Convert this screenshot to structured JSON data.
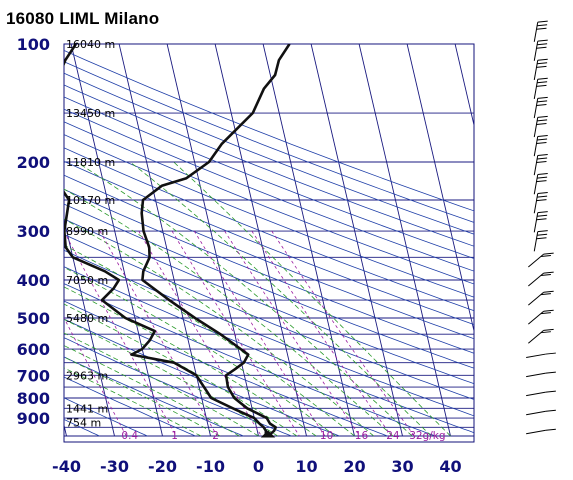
{
  "title": "16080 LIML Milano",
  "chart_data": {
    "type": "line",
    "title": "16080 LIML Milano",
    "x_axis": {
      "ticks": [
        -40,
        -30,
        -20,
        -10,
        0,
        10,
        20,
        30,
        40
      ],
      "range": [
        -40,
        45
      ]
    },
    "y_axis": {
      "ticks": [
        100,
        200,
        300,
        400,
        500,
        600,
        700,
        800,
        900
      ],
      "range": [
        100,
        1000
      ],
      "scale": "log"
    },
    "height_labels": [
      {
        "p": 100,
        "label": "16040 m"
      },
      {
        "p": 150,
        "label": "13450 m"
      },
      {
        "p": 200,
        "label": "11810 m"
      },
      {
        "p": 250,
        "label": "10170 m"
      },
      {
        "p": 300,
        "label": "8990 m"
      },
      {
        "p": 400,
        "label": "7050 m"
      },
      {
        "p": 500,
        "label": "5480 m"
      },
      {
        "p": 700,
        "label": "2963 m"
      },
      {
        "p": 850,
        "label": "1441 m"
      },
      {
        "p": 925,
        "label": "754 m"
      }
    ],
    "mixing_ratio_labels": [
      {
        "w": 0.4,
        "label": "0.4"
      },
      {
        "w": 1,
        "label": "1"
      },
      {
        "w": 2,
        "label": "2"
      },
      {
        "w": 10,
        "label": "10"
      },
      {
        "w": 16,
        "label": "16"
      },
      {
        "w": 24,
        "label": "24"
      },
      {
        "w": 32,
        "label": "32g/kg"
      }
    ],
    "series": [
      {
        "line": "temperature",
        "color": "#111111",
        "points": [
          [
            1000,
            2.0
          ],
          [
            970,
            3.5
          ],
          [
            950,
            4.0
          ],
          [
            930,
            3.0
          ],
          [
            900,
            2.6
          ],
          [
            850,
            -1.0
          ],
          [
            800,
            -3.2
          ],
          [
            750,
            -4.0
          ],
          [
            700,
            -3.8
          ],
          [
            675,
            -1.6
          ],
          [
            650,
            0.5
          ],
          [
            620,
            1.8
          ],
          [
            600,
            0.5
          ],
          [
            550,
            -3.0
          ],
          [
            500,
            -7.5
          ],
          [
            450,
            -12.0
          ],
          [
            400,
            -16.6
          ],
          [
            380,
            -16.0
          ],
          [
            350,
            -14.0
          ],
          [
            330,
            -13.6
          ],
          [
            300,
            -14.0
          ],
          [
            270,
            -13.5
          ],
          [
            250,
            -12.6
          ],
          [
            230,
            -8.0
          ],
          [
            220,
            -2.5
          ],
          [
            200,
            3.0
          ],
          [
            180,
            6.5
          ],
          [
            150,
            14.5
          ],
          [
            130,
            18.0
          ],
          [
            120,
            21.0
          ],
          [
            110,
            22.5
          ],
          [
            100,
            25.5
          ]
        ]
      },
      {
        "line": "dewpoint",
        "color": "#111111",
        "points": [
          [
            1000,
            1.5
          ],
          [
            970,
            1.8
          ],
          [
            950,
            1.5
          ],
          [
            930,
            0.8
          ],
          [
            900,
            0.0
          ],
          [
            850,
            -4.0
          ],
          [
            800,
            -8.0
          ],
          [
            700,
            -10.0
          ],
          [
            650,
            -14.0
          ],
          [
            620,
            -22.5
          ],
          [
            600,
            -20.0
          ],
          [
            570,
            -18.0
          ],
          [
            540,
            -16.5
          ],
          [
            500,
            -22.0
          ],
          [
            450,
            -26.0
          ],
          [
            420,
            -23.0
          ],
          [
            400,
            -21.5
          ],
          [
            380,
            -24.0
          ],
          [
            350,
            -30.0
          ],
          [
            330,
            -31.0
          ],
          [
            300,
            -30.5
          ],
          [
            250,
            -28.0
          ],
          [
            220,
            -30.0
          ],
          [
            200,
            -31.5
          ],
          [
            170,
            -28.5
          ],
          [
            150,
            -26.0
          ],
          [
            120,
            -24.0
          ],
          [
            110,
            -22.0
          ],
          [
            100,
            -19.0
          ]
        ]
      }
    ],
    "wind_barbs_count": 22
  }
}
